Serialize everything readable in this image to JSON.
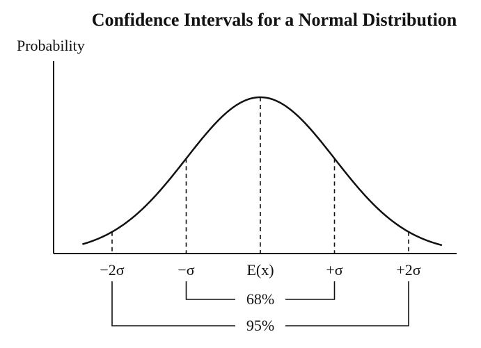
{
  "chart_data": {
    "type": "line",
    "title": "Confidence Intervals for a Normal Distribution",
    "ylabel": "Probability",
    "xlabel": "",
    "x_unit_label": "σ",
    "xlim": [
      -2.4,
      2.45
    ],
    "ticks": [
      {
        "x": -2,
        "label": "−2σ"
      },
      {
        "x": -1,
        "label": "−σ"
      },
      {
        "x": 0,
        "label": "E(x)"
      },
      {
        "x": 1,
        "label": "+σ"
      },
      {
        "x": 2,
        "label": "+2σ"
      }
    ],
    "curve": {
      "name": "",
      "distribution": "normal",
      "mean": 0,
      "sd": 1
    },
    "intervals": [
      {
        "from": -1,
        "to": 1,
        "label": "68%"
      },
      {
        "from": -2,
        "to": 2,
        "label": "95%"
      }
    ],
    "dashed_drop_lines_at": [
      -2,
      -1,
      0,
      1,
      2
    ],
    "grid": false,
    "legend": "none"
  }
}
